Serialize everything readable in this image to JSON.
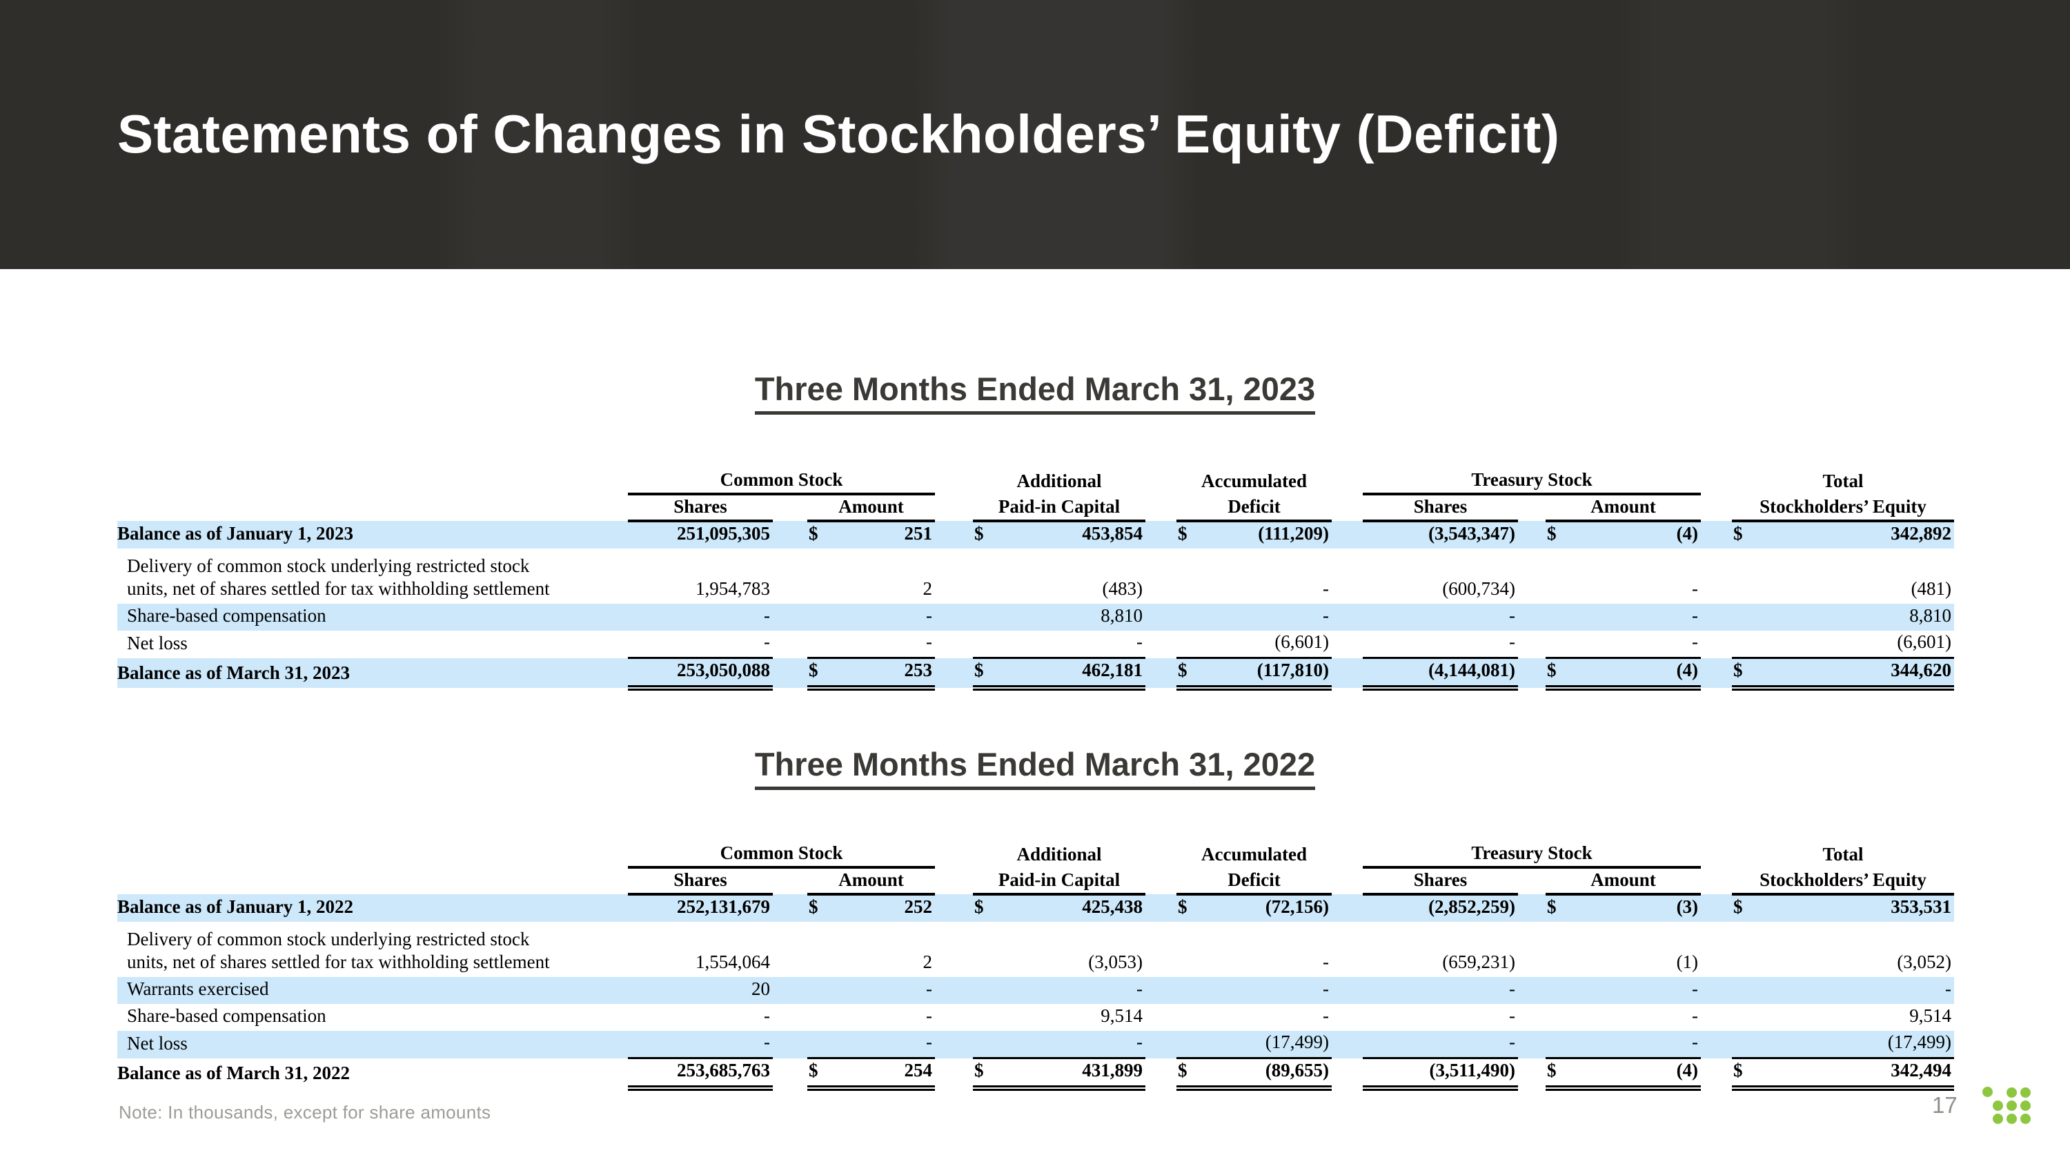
{
  "slide": {
    "title": "Statements of Changes in Stockholders’ Equity (Deficit)",
    "note": "Note: In thousands, except for share amounts",
    "page_number": "17"
  },
  "colors": {
    "header_bg": "#2f2e2b",
    "heading": "#3a3936",
    "stripe": "#cce8fa",
    "logo_green": "#8dc63f",
    "note_gray": "#9c9c96"
  },
  "columns": {
    "common_stock": "Common Stock",
    "additional": "Additional",
    "accumulated": "Accumulated",
    "treasury_stock": "Treasury Stock",
    "total": "Total",
    "shares": "Shares",
    "amount": "Amount",
    "paid_in_capital": "Paid-in Capital",
    "deficit": "Deficit",
    "stockholders_equity": "Stockholders’ Equity"
  },
  "tables": [
    {
      "heading": "Three Months Ended March 31, 2023",
      "rows": [
        {
          "label": [
            "Balance as of January 1, 2023"
          ],
          "bold": true,
          "stripe": true,
          "indent": false,
          "total": false,
          "cells": [
            "251,095,305",
            "$",
            "251",
            "$",
            "453,854",
            "$",
            "(111,209)",
            "(3,543,347)",
            "$",
            "(4)",
            "$",
            "342,892"
          ]
        },
        {
          "label": [
            "Delivery of common stock underlying restricted stock",
            "units, net of shares settled for tax withholding settlement"
          ],
          "bold": false,
          "stripe": false,
          "indent": true,
          "total": false,
          "tall": true,
          "cells": [
            "1,954,783",
            "",
            "2",
            "",
            "(483)",
            "",
            "-",
            "(600,734)",
            "",
            "-",
            "",
            "(481)"
          ]
        },
        {
          "label": [
            "Share-based compensation"
          ],
          "bold": false,
          "stripe": true,
          "indent": true,
          "total": false,
          "cells": [
            "-",
            "",
            "-",
            "",
            "8,810",
            "",
            "-",
            "-",
            "",
            "-",
            "",
            "8,810"
          ]
        },
        {
          "label": [
            "Net loss"
          ],
          "bold": false,
          "stripe": false,
          "indent": true,
          "total": false,
          "cells": [
            "-",
            "",
            "-",
            "",
            "-",
            "",
            "(6,601)",
            "-",
            "",
            "-",
            "",
            "(6,601)"
          ]
        },
        {
          "label": [
            "Balance as of March 31, 2023"
          ],
          "bold": true,
          "stripe": true,
          "indent": false,
          "total": true,
          "cells": [
            "253,050,088",
            "$",
            "253",
            "$",
            "462,181",
            "$",
            "(117,810)",
            "(4,144,081)",
            "$",
            "(4)",
            "$",
            "344,620"
          ]
        }
      ]
    },
    {
      "heading": "Three Months Ended March 31, 2022",
      "rows": [
        {
          "label": [
            "Balance as of January 1, 2022"
          ],
          "bold": true,
          "stripe": true,
          "indent": false,
          "total": false,
          "cells": [
            "252,131,679",
            "$",
            "252",
            "$",
            "425,438",
            "$",
            "(72,156)",
            "(2,852,259)",
            "$",
            "(3)",
            "$",
            "353,531"
          ]
        },
        {
          "label": [
            "Delivery of common stock underlying restricted stock",
            "units, net of shares settled for tax withholding settlement"
          ],
          "bold": false,
          "stripe": false,
          "indent": true,
          "total": false,
          "tall": true,
          "cells": [
            "1,554,064",
            "",
            "2",
            "",
            "(3,053)",
            "",
            "-",
            "(659,231)",
            "",
            "(1)",
            "",
            "(3,052)"
          ]
        },
        {
          "label": [
            "Warrants exercised"
          ],
          "bold": false,
          "stripe": true,
          "indent": true,
          "total": false,
          "cells": [
            "20",
            "",
            "-",
            "",
            "-",
            "",
            "-",
            "-",
            "",
            "-",
            "",
            "-"
          ]
        },
        {
          "label": [
            "Share-based compensation"
          ],
          "bold": false,
          "stripe": false,
          "indent": true,
          "total": false,
          "cells": [
            "-",
            "",
            "-",
            "",
            "9,514",
            "",
            "-",
            "-",
            "",
            "-",
            "",
            "9,514"
          ]
        },
        {
          "label": [
            "Net loss"
          ],
          "bold": false,
          "stripe": true,
          "indent": true,
          "total": false,
          "cells": [
            "-",
            "",
            "-",
            "",
            "-",
            "",
            "(17,499)",
            "-",
            "",
            "-",
            "",
            "(17,499)"
          ]
        },
        {
          "label": [
            "Balance as of March 31, 2022"
          ],
          "bold": true,
          "stripe": false,
          "indent": false,
          "total": true,
          "cells": [
            "253,685,763",
            "$",
            "254",
            "$",
            "431,899",
            "$",
            "(89,655)",
            "(3,511,490)",
            "$",
            "(4)",
            "$",
            "342,494"
          ]
        }
      ]
    }
  ]
}
